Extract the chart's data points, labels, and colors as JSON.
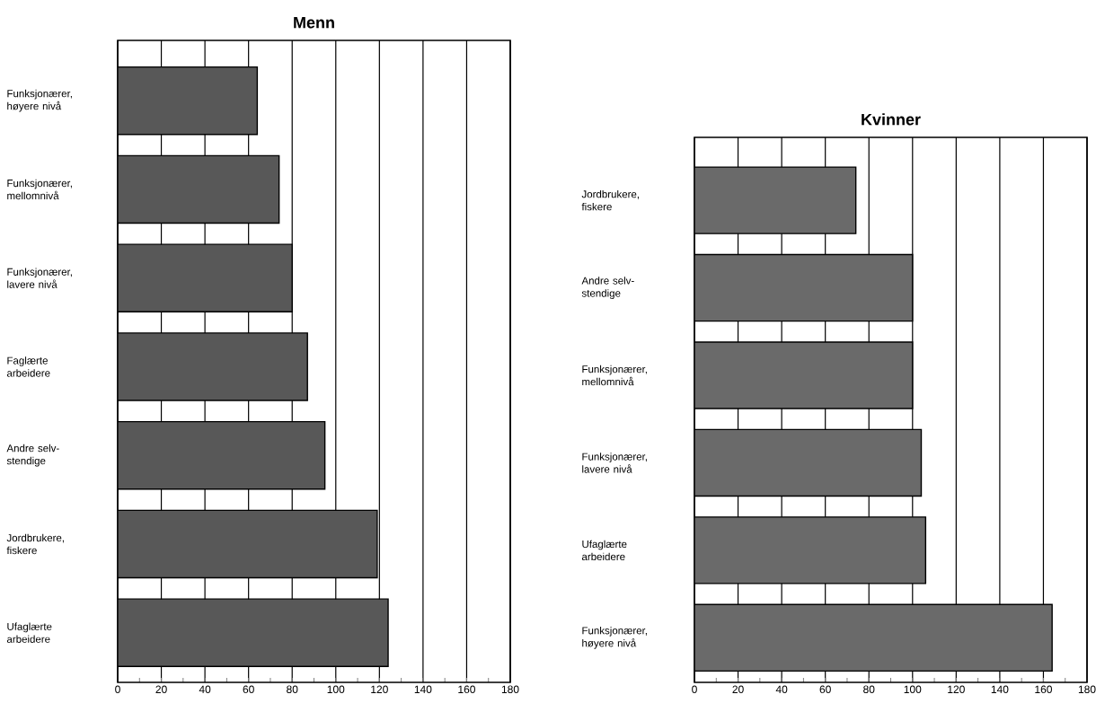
{
  "chart_data": [
    {
      "type": "bar",
      "orientation": "horizontal",
      "title": "Menn",
      "categories": [
        "Funksjonærer, høyere nivå",
        "Funksjonærer, mellomnivå",
        "Funksjonærer, lavere nivå",
        "Faglærte arbeidere",
        "Andre selv-stendige",
        "Jordbrukere, fiskere",
        "Ufaglærte arbeidere"
      ],
      "values": [
        64,
        74,
        80,
        87,
        95,
        119,
        124
      ],
      "color": "#585858",
      "xlim": [
        0,
        180
      ],
      "xticks": [
        0,
        20,
        40,
        60,
        80,
        100,
        120,
        140,
        160,
        180
      ],
      "grid": "x"
    },
    {
      "type": "bar",
      "orientation": "horizontal",
      "title": "Kvinner",
      "categories": [
        "Jordbrukere, fiskere",
        "Andre selv-stendige",
        "Funksjonærer, mellomnivå",
        "Funksjonærer, lavere nivå",
        "Ufaglærte arbeidere",
        "Funksjonærer, høyere nivå"
      ],
      "values": [
        74,
        100,
        100,
        104,
        106,
        164
      ],
      "color": "#6a6a6a",
      "xlim": [
        0,
        180
      ],
      "xticks": [
        0,
        20,
        40,
        60,
        80,
        100,
        120,
        140,
        160,
        180
      ],
      "grid": "x"
    }
  ]
}
